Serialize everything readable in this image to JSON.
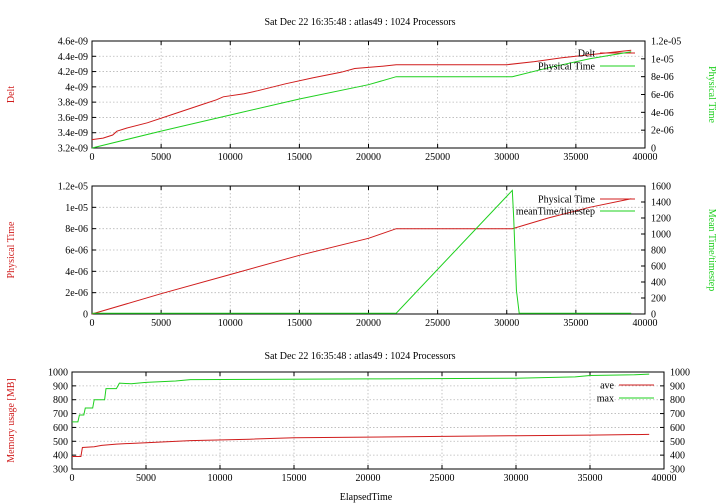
{
  "figure": {
    "title_top": "Sat Dec 22 16:35:48 : atlas49 : 1024 Processors",
    "title_bottom": "Sat Dec 22 16:35:48 : atlas49 : 1024 Processors",
    "xlabel_bottom": "ElapsedTime"
  },
  "colors": {
    "red": "#d01c1c",
    "green": "#1ed01e",
    "grid": "#b8b8b8"
  },
  "chart_data": [
    {
      "type": "line",
      "title": "Sat Dec 22 16:35:48 : atlas49 : 1024 Processors",
      "grid": true,
      "legend": "top-right",
      "x_ticks": [
        "0",
        "5000",
        "10000",
        "15000",
        "20000",
        "25000",
        "30000",
        "35000",
        "40000"
      ],
      "xlim": [
        0,
        40000
      ],
      "ylabel_left": "Delt",
      "ylabel_right": "Physical Time",
      "y_left_ticks": [
        "3.2e-09",
        "3.4e-09",
        "3.6e-09",
        "3.8e-09",
        "4e-09",
        "4.2e-09",
        "4.4e-09",
        "4.6e-09"
      ],
      "y_right_ticks": [
        "0",
        "2e-06",
        "4e-06",
        "6e-06",
        "8e-06",
        "1e-05",
        "1.2e-05"
      ],
      "ylim_left": [
        3.2e-09,
        4.6e-09
      ],
      "ylim_right": [
        0,
        1.2e-05
      ],
      "series": [
        {
          "name": "Delt",
          "axis": "left",
          "color": "red",
          "x": [
            0,
            800,
            1500,
            1800,
            2500,
            4000,
            6000,
            8000,
            9000,
            9500,
            11000,
            12000,
            14000,
            16000,
            18000,
            19000,
            21000,
            22000,
            25000,
            28000,
            30000,
            32000,
            34000,
            36000,
            38000,
            39000
          ],
          "y": [
            3.31e-09,
            3.33e-09,
            3.37e-09,
            3.42e-09,
            3.46e-09,
            3.53e-09,
            3.65e-09,
            3.77e-09,
            3.83e-09,
            3.87e-09,
            3.91e-09,
            3.95e-09,
            4.04e-09,
            4.12e-09,
            4.19e-09,
            4.24e-09,
            4.27e-09,
            4.29e-09,
            4.29e-09,
            4.29e-09,
            4.29e-09,
            4.33e-09,
            4.38e-09,
            4.42e-09,
            4.46e-09,
            4.48e-09
          ]
        },
        {
          "name": "Physical Time",
          "axis": "right",
          "color": "green",
          "x": [
            0,
            5000,
            10000,
            15000,
            20000,
            22000,
            25000,
            28000,
            30400,
            33000,
            36000,
            39000
          ],
          "y": [
            0,
            1.9e-06,
            3.7e-06,
            5.5e-06,
            7.1e-06,
            8e-06,
            8e-06,
            8e-06,
            8e-06,
            9e-06,
            1e-05,
            1.08e-05
          ]
        }
      ]
    },
    {
      "type": "line",
      "grid": true,
      "legend": "top-right",
      "x_ticks": [
        "0",
        "5000",
        "10000",
        "15000",
        "20000",
        "25000",
        "30000",
        "35000",
        "40000"
      ],
      "xlim": [
        0,
        40000
      ],
      "ylabel_left": "Physical Time",
      "ylabel_right": "Mean Time/timestep",
      "y_left_ticks": [
        "0",
        "2e-06",
        "4e-06",
        "6e-06",
        "8e-06",
        "1e-05",
        "1.2e-05"
      ],
      "y_right_ticks": [
        "0",
        "200",
        "400",
        "600",
        "800",
        "1000",
        "1200",
        "1400",
        "1600"
      ],
      "ylim_left": [
        0,
        1.2e-05
      ],
      "ylim_right": [
        0,
        1600
      ],
      "series": [
        {
          "name": "Physical Time",
          "axis": "left",
          "color": "red",
          "x": [
            0,
            5000,
            10000,
            15000,
            20000,
            22000,
            25000,
            28000,
            30400,
            33000,
            36000,
            39000
          ],
          "y": [
            0,
            1.9e-06,
            3.7e-06,
            5.5e-06,
            7.1e-06,
            8e-06,
            8e-06,
            8e-06,
            8e-06,
            9e-06,
            1e-05,
            1.08e-05
          ]
        },
        {
          "name": "meanTime/timestep",
          "axis": "right",
          "color": "green",
          "x": [
            0,
            22000,
            30400,
            30500,
            30700,
            30900,
            39000
          ],
          "y": [
            10,
            10,
            1545,
            1200,
            300,
            10,
            10
          ]
        }
      ]
    },
    {
      "type": "line",
      "title": "Sat Dec 22 16:35:48 : atlas49 : 1024 Processors",
      "grid": true,
      "legend": "top-right",
      "x_ticks": [
        "0",
        "5000",
        "10000",
        "15000",
        "20000",
        "25000",
        "30000",
        "35000",
        "40000"
      ],
      "xlim": [
        0,
        40000
      ],
      "xlabel": "ElapsedTime",
      "ylabel_left": "Memory usage [MB]",
      "y_left_ticks": [
        "300",
        "400",
        "500",
        "600",
        "700",
        "800",
        "900",
        "1000"
      ],
      "y_right_ticks": [
        "300",
        "400",
        "500",
        "600",
        "700",
        "800",
        "900",
        "1000"
      ],
      "ylim_left": [
        300,
        1000
      ],
      "ylim_right": [
        300,
        1000
      ],
      "series": [
        {
          "name": "ave",
          "axis": "left",
          "color": "red",
          "x": [
            0,
            600,
            700,
            1500,
            2000,
            3000,
            5000,
            8000,
            12000,
            15000,
            20000,
            25000,
            30000,
            35000,
            39000
          ],
          "y": [
            390,
            390,
            455,
            460,
            470,
            480,
            490,
            505,
            515,
            525,
            530,
            535,
            540,
            545,
            550
          ]
        },
        {
          "name": "max",
          "axis": "left",
          "color": "green",
          "x": [
            0,
            400,
            500,
            800,
            900,
            1400,
            1500,
            2200,
            2300,
            3000,
            3200,
            4000,
            5000,
            7000,
            8000,
            20000,
            30000,
            34000,
            35000,
            38000,
            39000
          ],
          "y": [
            640,
            640,
            690,
            690,
            740,
            740,
            800,
            800,
            880,
            880,
            920,
            915,
            925,
            935,
            945,
            950,
            955,
            965,
            975,
            980,
            985
          ]
        }
      ]
    }
  ]
}
